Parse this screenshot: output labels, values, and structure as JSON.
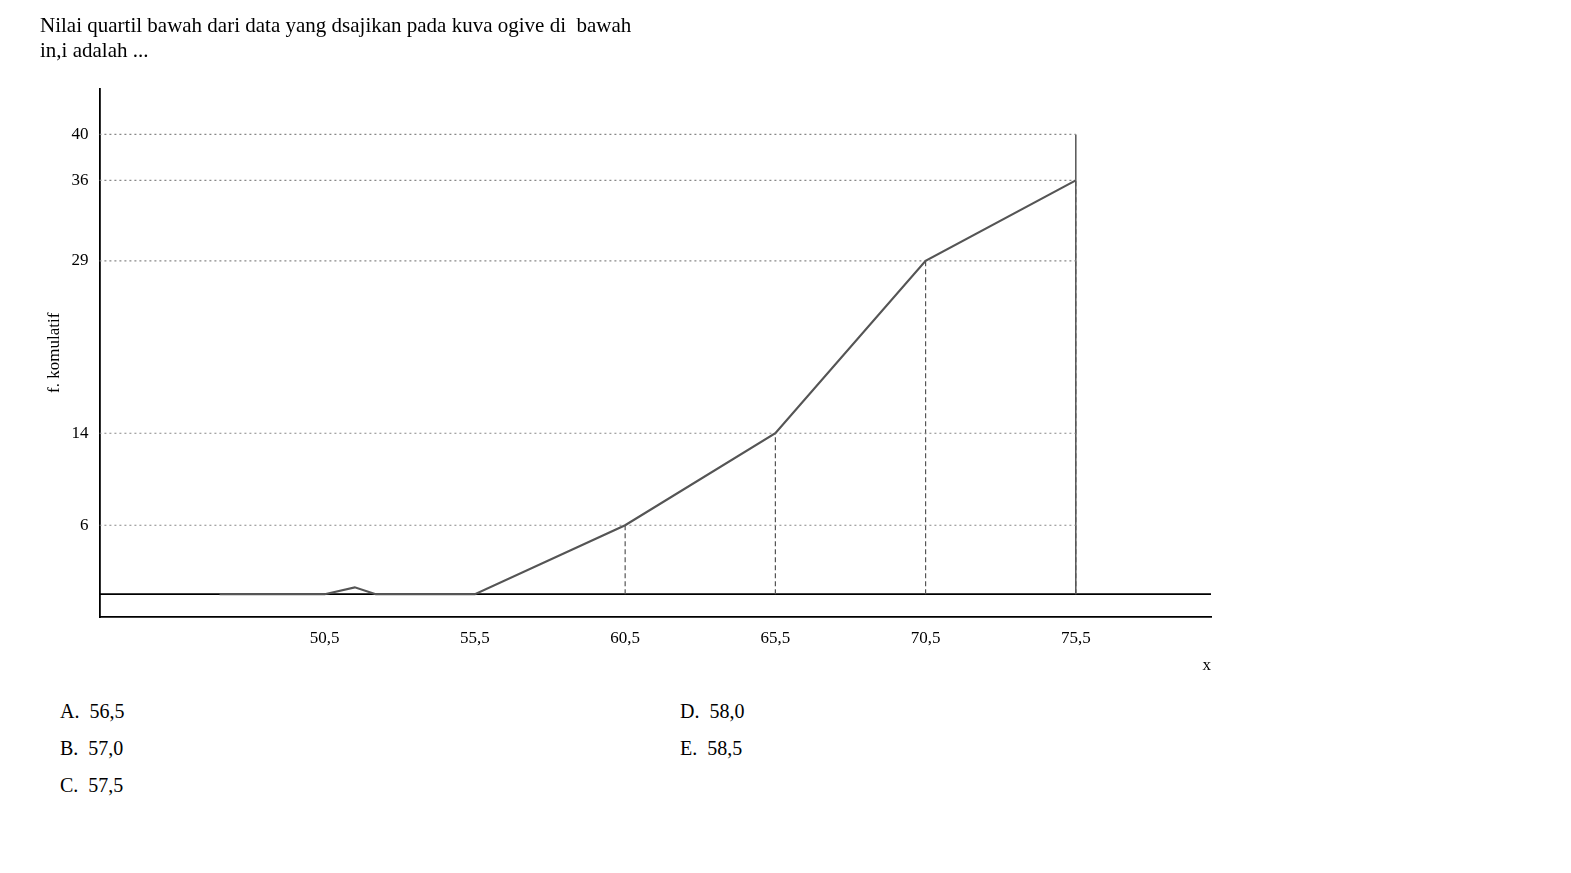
{
  "chart_data": {
    "type": "line",
    "title": [
      "Nilai quartil bawah dari data yang dsajikan pada kuva ogive di  bawah",
      "in,i adalah ..."
    ],
    "x": [
      47.0,
      50.5,
      51.5,
      52.2,
      53.5,
      55.5,
      60.5,
      65.5,
      70.5,
      75.5
    ],
    "values": [
      0,
      0,
      0.6,
      0,
      0,
      0,
      6,
      14,
      29,
      36
    ],
    "color": "#555555",
    "xlabel": "x",
    "ylabel": "f. komulatif",
    "xlim": [
      43,
      80
    ],
    "ylim": [
      -2,
      44
    ],
    "xticks": [
      {
        "value": 50.5,
        "label": "50,5"
      },
      {
        "value": 55.5,
        "label": "55,5"
      },
      {
        "value": 60.5,
        "label": "60,5"
      },
      {
        "value": 65.5,
        "label": "65,5"
      },
      {
        "value": 70.5,
        "label": "70,5"
      },
      {
        "value": 75.5,
        "label": "75,5"
      }
    ],
    "yticks": [
      6,
      14,
      29,
      36,
      40
    ],
    "grid": false,
    "legend": false,
    "h_lines": {
      "y": [
        6,
        14,
        29,
        36,
        40
      ],
      "x_to": 75.5,
      "color": "#888888",
      "line_style": "dotted"
    },
    "v_lines": {
      "x": [
        60.5,
        65.5,
        70.5,
        75.5
      ],
      "y_from": 0,
      "y_to": [
        6,
        14,
        29,
        36
      ],
      "color": "#555555",
      "line_style": "dashed"
    },
    "box_edge": {
      "x": 75.5,
      "y_from": 0,
      "y_to": 40,
      "color": "#555555",
      "line_style": "solid"
    },
    "baseline": {
      "y": 0,
      "color": "#000000"
    },
    "answer_options": {
      "left": [
        "A.  56,5",
        "B.  57,0",
        "C.  57,5"
      ],
      "right": [
        "D.  58,0",
        "E.  58,5"
      ]
    }
  }
}
